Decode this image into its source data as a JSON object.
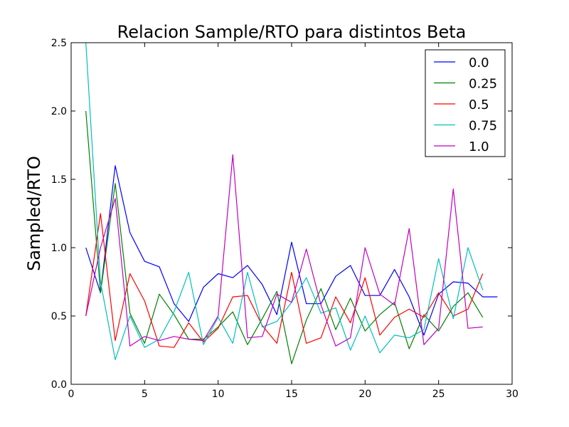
{
  "chart_data": {
    "type": "line",
    "title": "Relacion Sample/RTO para distintos Beta",
    "xlabel": "",
    "ylabel": "Sampled/RTO",
    "xlim": [
      0,
      30
    ],
    "ylim": [
      0.0,
      2.5
    ],
    "x_ticks": [
      "0",
      "5",
      "10",
      "15",
      "20",
      "25",
      "30"
    ],
    "y_ticks": [
      "0.0",
      "0.5",
      "1.0",
      "1.5",
      "2.0",
      "2.5"
    ],
    "grid": false,
    "legend_position": "top-right",
    "series": [
      {
        "name": "0.0",
        "color": "#0000ff",
        "x": [
          1,
          2,
          3,
          4,
          5,
          6,
          7,
          8,
          9,
          10,
          11,
          12,
          13,
          14,
          15,
          16,
          17,
          18,
          19,
          20,
          21,
          22,
          23,
          24,
          25,
          26,
          27,
          28,
          29
        ],
        "y": [
          1.0,
          0.67,
          1.6,
          1.11,
          0.9,
          0.86,
          0.59,
          0.46,
          0.71,
          0.81,
          0.78,
          0.87,
          0.73,
          0.51,
          1.04,
          0.59,
          0.59,
          0.79,
          0.87,
          0.65,
          0.65,
          0.84,
          0.64,
          0.36,
          0.66,
          0.75,
          0.74,
          0.64,
          0.64
        ]
      },
      {
        "name": "0.25",
        "color": "#008000",
        "x": [
          1,
          2,
          3,
          4,
          5,
          6,
          7,
          8,
          9,
          10,
          11,
          12,
          13,
          14,
          15,
          16,
          17,
          18,
          19,
          20,
          21,
          22,
          23,
          24,
          25,
          26,
          27,
          28
        ],
        "y": [
          2.0,
          0.67,
          1.47,
          0.52,
          0.3,
          0.66,
          0.51,
          0.33,
          0.33,
          0.42,
          0.53,
          0.29,
          0.48,
          0.68,
          0.15,
          0.47,
          0.7,
          0.4,
          0.63,
          0.39,
          0.51,
          0.6,
          0.26,
          0.51,
          0.39,
          0.57,
          0.67,
          0.49
        ]
      },
      {
        "name": "0.5",
        "color": "#ff0000",
        "x": [
          1,
          2,
          3,
          4,
          5,
          6,
          7,
          8,
          9,
          10,
          11,
          12,
          13,
          14,
          15,
          16,
          17,
          18,
          19,
          20,
          21,
          22,
          23,
          24,
          25,
          26,
          27,
          28
        ],
        "y": [
          0.5,
          1.25,
          0.32,
          0.81,
          0.61,
          0.28,
          0.27,
          0.45,
          0.31,
          0.41,
          0.64,
          0.65,
          0.43,
          0.3,
          0.82,
          0.3,
          0.34,
          0.64,
          0.45,
          0.78,
          0.36,
          0.49,
          0.55,
          0.49,
          0.67,
          0.5,
          0.55,
          0.81
        ]
      },
      {
        "name": "0.75",
        "color": "#00bfbf",
        "x": [
          1,
          2,
          3,
          4,
          5,
          6,
          7,
          8,
          9,
          10,
          11,
          12,
          13,
          14,
          15,
          16,
          17,
          18,
          19,
          20,
          21,
          22,
          23,
          24,
          25,
          26,
          27,
          28
        ],
        "y": [
          2.5,
          0.75,
          0.18,
          0.5,
          0.27,
          0.33,
          0.53,
          0.82,
          0.29,
          0.49,
          0.3,
          0.82,
          0.42,
          0.46,
          0.6,
          0.78,
          0.52,
          0.56,
          0.25,
          0.5,
          0.23,
          0.36,
          0.34,
          0.4,
          0.92,
          0.48,
          1.0,
          0.69
        ]
      },
      {
        "name": "1.0",
        "color": "#bf00bf",
        "x": [
          1,
          2,
          3,
          4,
          5,
          6,
          7,
          8,
          9,
          10,
          11,
          12,
          13,
          14,
          15,
          16,
          17,
          18,
          19,
          20,
          21,
          22,
          23,
          24,
          25,
          26,
          27,
          28
        ],
        "y": [
          0.5,
          1.0,
          1.36,
          0.28,
          0.35,
          0.32,
          0.35,
          0.33,
          0.32,
          0.5,
          1.68,
          0.34,
          0.35,
          0.66,
          0.6,
          0.99,
          0.58,
          0.28,
          0.34,
          1.0,
          0.66,
          0.58,
          1.14,
          0.29,
          0.41,
          1.43,
          0.41,
          0.42
        ]
      }
    ]
  }
}
